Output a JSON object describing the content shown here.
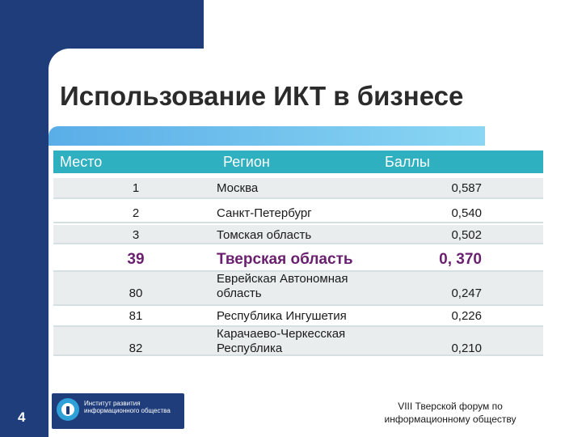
{
  "title": "Использование ИКТ в бизнесе",
  "table": {
    "headers": {
      "place": "Место",
      "region": "Регион",
      "score": "Баллы"
    },
    "rows": [
      {
        "place": "1",
        "region": "Москва",
        "score": "0,587"
      },
      {
        "place": "2",
        "region": "Санкт-Петербург",
        "score": "0,540"
      },
      {
        "place": "3",
        "region": "Томская область",
        "score": "0,502"
      },
      {
        "place": "39",
        "region": "Тверская область",
        "score": "0, 370"
      },
      {
        "place": "80",
        "region_line1": "Еврейская   Автономная",
        "region_line2": "область",
        "score": "0,247"
      },
      {
        "place": "81",
        "region": "Республика Ингушетия",
        "score": "0,226"
      },
      {
        "place": "82",
        "region_line1": "Карачаево-Черкесская",
        "region_line2": "Республика",
        "score": "0,210"
      }
    ]
  },
  "slide_number": "4",
  "logo": {
    "line1": "Институт развития",
    "line2": "информационного общества"
  },
  "footer": {
    "line1": "VIII Тверской форум по",
    "line2": "информационному обществу"
  },
  "colors": {
    "navy": "#1f3d7a",
    "teal_header": "#2fb0c0",
    "highlight": "#6a1f6f"
  }
}
